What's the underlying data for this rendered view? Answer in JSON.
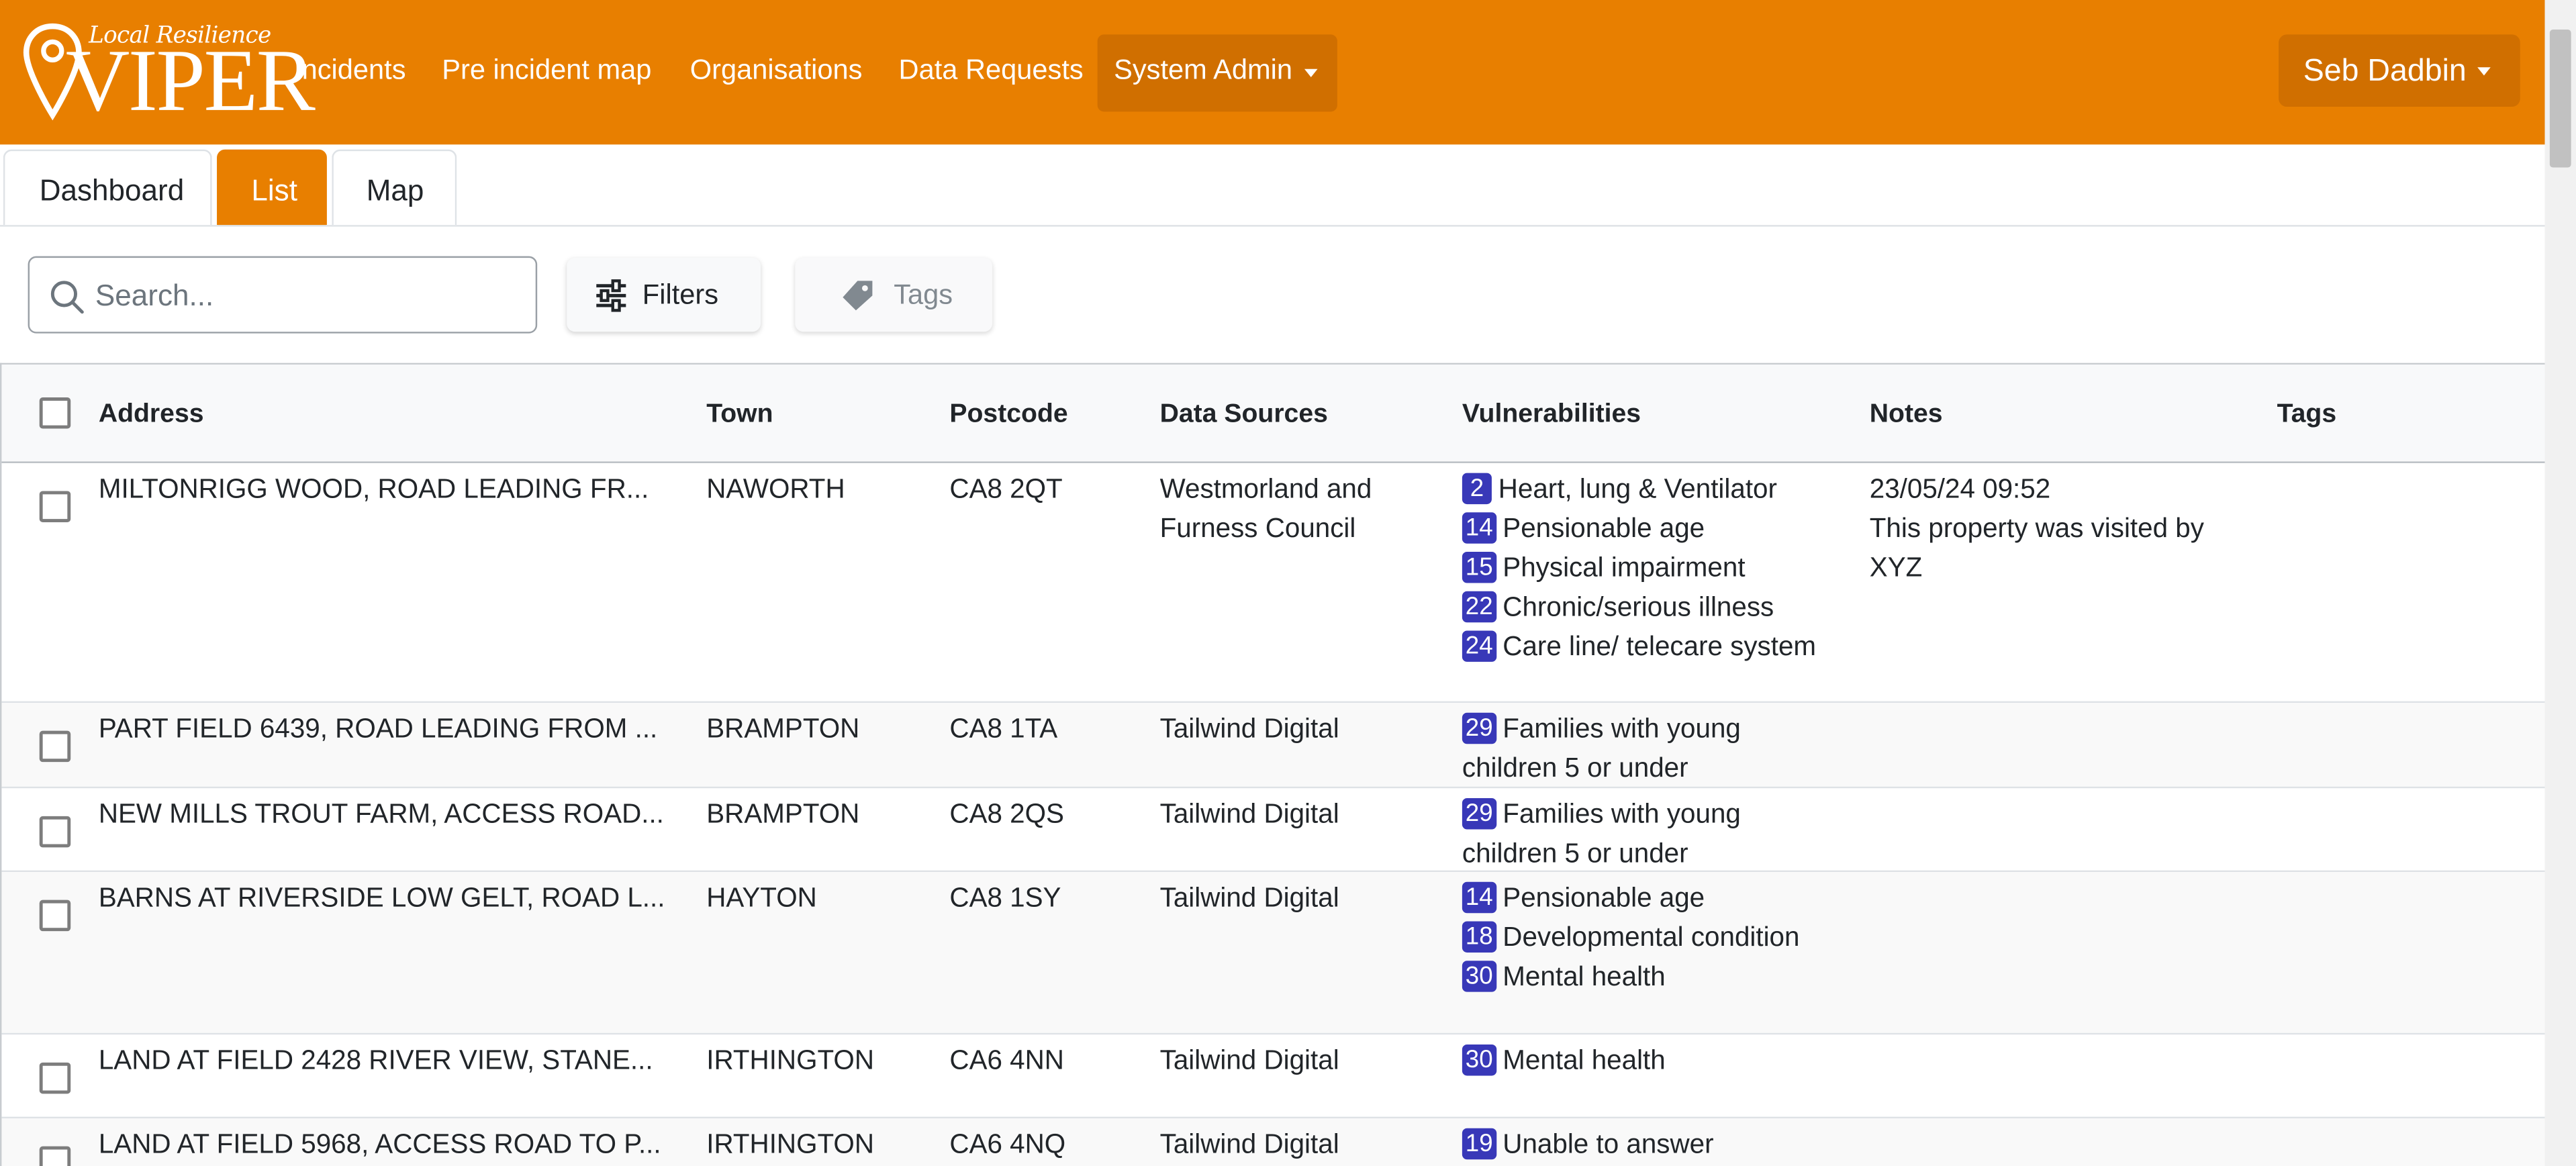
{
  "brand": {
    "tagline": "Local Resilience",
    "name": "VIPER"
  },
  "nav": {
    "links": [
      "Incidents",
      "Pre incident map",
      "Organisations",
      "Data Requests"
    ],
    "admin_label": "System Admin",
    "user_label": "Seb Dadbin"
  },
  "tabs": [
    "Dashboard",
    "List",
    "Map"
  ],
  "active_tab": "List",
  "toolbar": {
    "search_placeholder": "Search...",
    "filters_label": "Filters",
    "tags_label": "Tags"
  },
  "table": {
    "columns": [
      "Address",
      "Town",
      "Postcode",
      "Data Sources",
      "Vulnerabilities",
      "Notes",
      "Tags"
    ],
    "rows": [
      {
        "address": "MILTONRIGG WOOD, ROAD LEADING FR...",
        "town": "NAWORTH",
        "postcode": "CA8 2QT",
        "source": "Westmorland and Furness Council",
        "vulnerabilities": [
          {
            "code": "2",
            "label": "Heart, lung & Ventilator"
          },
          {
            "code": "14",
            "label": "Pensionable age"
          },
          {
            "code": "15",
            "label": "Physical impairment"
          },
          {
            "code": "22",
            "label": "Chronic/serious illness"
          },
          {
            "code": "24",
            "label": "Care line/ telecare system"
          }
        ],
        "notes_date": "23/05/24 09:52",
        "notes_text": "This property was visited by XYZ"
      },
      {
        "address": "PART FIELD 6439, ROAD LEADING FROM ...",
        "town": "BRAMPTON",
        "postcode": "CA8 1TA",
        "source": "Tailwind Digital",
        "vulnerabilities": [
          {
            "code": "29",
            "label": "Families with young children 5 or under"
          }
        ],
        "notes_date": "",
        "notes_text": ""
      },
      {
        "address": "NEW MILLS TROUT FARM, ACCESS ROAD...",
        "town": "BRAMPTON",
        "postcode": "CA8 2QS",
        "source": "Tailwind Digital",
        "vulnerabilities": [
          {
            "code": "29",
            "label": "Families with young children 5 or under"
          }
        ],
        "notes_date": "",
        "notes_text": ""
      },
      {
        "address": "BARNS AT RIVERSIDE LOW GELT, ROAD L...",
        "town": "HAYTON",
        "postcode": "CA8 1SY",
        "source": "Tailwind Digital",
        "vulnerabilities": [
          {
            "code": "14",
            "label": "Pensionable age"
          },
          {
            "code": "18",
            "label": "Developmental condition"
          },
          {
            "code": "30",
            "label": "Mental health"
          }
        ],
        "notes_date": "",
        "notes_text": ""
      },
      {
        "address": "LAND AT FIELD 2428 RIVER VIEW, STANE...",
        "town": "IRTHINGTON",
        "postcode": "CA6 4NN",
        "source": "Tailwind Digital",
        "vulnerabilities": [
          {
            "code": "30",
            "label": "Mental health"
          }
        ],
        "notes_date": "",
        "notes_text": ""
      },
      {
        "address": "LAND AT FIELD 5968, ACCESS ROAD TO P...",
        "town": "IRTHINGTON",
        "postcode": "CA6 4NQ",
        "source": "Tailwind Digital",
        "vulnerabilities": [
          {
            "code": "19",
            "label": "Unable to answer"
          }
        ],
        "notes_date": "",
        "notes_text": ""
      }
    ]
  },
  "colors": {
    "brand_orange": "#e87f00",
    "brand_orange_dark": "#d06f00",
    "vulnerability_badge": "#3838b8"
  }
}
